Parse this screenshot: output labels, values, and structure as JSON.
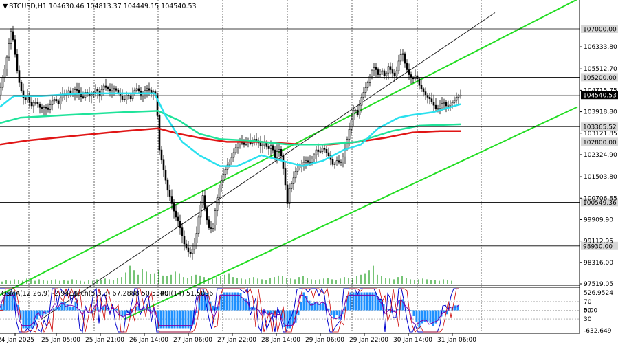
{
  "header": {
    "symbol": "BTCUSD,H1",
    "ohlc": "104630.46 104813.37 104449.15 104540.53"
  },
  "osc_header": {
    "osma": "OsMA(12,26,9) -2.9413",
    "stoch": "Stoch(5,3,3) 67.2888 50.5340",
    "rsi": "RSI(14) 51.5096"
  },
  "colors": {
    "candle": "#000000",
    "ma_fast": "#2ae0ee",
    "ma_mid": "#1fe39a",
    "ma_slow": "#e01515",
    "channel": "#22dd22",
    "tag_bg": "#d7d7d7",
    "price_tag_bg": "#000000",
    "osma": "#1e90ff",
    "stoch_main": "#0000cc",
    "stoch_signal": "#cc0000",
    "rsi": "#7a00aa"
  },
  "chart_data": {
    "type": "candlestick",
    "title": "BTCUSD,H1",
    "ylim": [
      97519.05,
      107920
    ],
    "y_ticks": [
      "106333.80",
      "105512.70",
      "104715.75",
      "103918.80",
      "103121.85",
      "102324.90",
      "101503.80",
      "100706.85",
      "99909.90",
      "99112.95",
      "98316.00",
      "97519.05"
    ],
    "x_ticks": [
      "24 Jan 2025",
      "25 Jan 05:00",
      "25 Jan 21:00",
      "26 Jan 14:00",
      "27 Jan 06:00",
      "27 Jan 22:00",
      "28 Jan 14:00",
      "29 Jan 06:00",
      "29 Jan 22:00",
      "30 Jan 14:00",
      "31 Jan 06:00"
    ],
    "levels": [
      {
        "value": 107000.0,
        "label": "107000.00"
      },
      {
        "value": 105200.0,
        "label": "105200.00"
      },
      {
        "value": 103365.52,
        "label": "103365.52"
      },
      {
        "value": 102800.0,
        "label": "102800.00"
      },
      {
        "value": 100549.36,
        "label": "100549.36"
      },
      {
        "value": 98930.0,
        "label": "98930.00"
      }
    ],
    "current_price": {
      "value": 104540.53,
      "label": "104540.53"
    },
    "close_path": [
      [
        0,
        104700
      ],
      [
        4,
        105200
      ],
      [
        8,
        105600
      ],
      [
        12,
        106300
      ],
      [
        16,
        106900
      ],
      [
        20,
        106500
      ],
      [
        24,
        105600
      ],
      [
        28,
        105000
      ],
      [
        32,
        104600
      ],
      [
        36,
        104300
      ],
      [
        40,
        104500
      ],
      [
        45,
        104100
      ],
      [
        50,
        104300
      ],
      [
        55,
        104200
      ],
      [
        60,
        104000
      ],
      [
        65,
        104100
      ],
      [
        70,
        104000
      ],
      [
        75,
        104300
      ],
      [
        80,
        104400
      ],
      [
        85,
        104200
      ],
      [
        90,
        104600
      ],
      [
        95,
        104500
      ],
      [
        100,
        104700
      ],
      [
        105,
        104500
      ],
      [
        110,
        104800
      ],
      [
        115,
        104600
      ],
      [
        120,
        104400
      ],
      [
        125,
        104700
      ],
      [
        130,
        104500
      ],
      [
        135,
        104600
      ],
      [
        140,
        104800
      ],
      [
        145,
        104500
      ],
      [
        150,
        104900
      ],
      [
        155,
        104800
      ],
      [
        160,
        104700
      ],
      [
        165,
        104800
      ],
      [
        170,
        104700
      ],
      [
        175,
        104500
      ],
      [
        180,
        104300
      ],
      [
        185,
        104600
      ],
      [
        190,
        104400
      ],
      [
        195,
        104700
      ],
      [
        200,
        104800
      ],
      [
        205,
        104500
      ],
      [
        210,
        104700
      ],
      [
        215,
        104800
      ],
      [
        220,
        104600
      ],
      [
        225,
        104700
      ],
      [
        228,
        104200
      ],
      [
        232,
        102500
      ],
      [
        236,
        102000
      ],
      [
        240,
        101500
      ],
      [
        244,
        101000
      ],
      [
        248,
        100700
      ],
      [
        252,
        100300
      ],
      [
        256,
        100000
      ],
      [
        260,
        99800
      ],
      [
        264,
        99400
      ],
      [
        268,
        99000
      ],
      [
        272,
        98800
      ],
      [
        276,
        98600
      ],
      [
        280,
        98800
      ],
      [
        285,
        99200
      ],
      [
        290,
        100200
      ],
      [
        295,
        100800
      ],
      [
        300,
        100000
      ],
      [
        305,
        99500
      ],
      [
        310,
        99700
      ],
      [
        315,
        100600
      ],
      [
        320,
        101200
      ],
      [
        325,
        101600
      ],
      [
        330,
        101900
      ],
      [
        335,
        102100
      ],
      [
        340,
        102400
      ],
      [
        345,
        102700
      ],
      [
        350,
        102800
      ],
      [
        355,
        102700
      ],
      [
        360,
        102900
      ],
      [
        365,
        102700
      ],
      [
        370,
        102900
      ],
      [
        375,
        102800
      ],
      [
        380,
        102600
      ],
      [
        385,
        102800
      ],
      [
        390,
        102500
      ],
      [
        395,
        102700
      ],
      [
        400,
        102200
      ],
      [
        405,
        102600
      ],
      [
        410,
        102200
      ],
      [
        415,
        101200
      ],
      [
        418,
        100500
      ],
      [
        420,
        101000
      ],
      [
        425,
        101300
      ],
      [
        430,
        101700
      ],
      [
        435,
        101900
      ],
      [
        440,
        102000
      ],
      [
        445,
        102100
      ],
      [
        450,
        102000
      ],
      [
        455,
        102200
      ],
      [
        460,
        102500
      ],
      [
        465,
        102400
      ],
      [
        470,
        102600
      ],
      [
        475,
        102400
      ],
      [
        480,
        102200
      ],
      [
        485,
        101900
      ],
      [
        490,
        102100
      ],
      [
        495,
        102000
      ],
      [
        500,
        102300
      ],
      [
        505,
        102900
      ],
      [
        510,
        103500
      ],
      [
        515,
        104100
      ],
      [
        520,
        103800
      ],
      [
        525,
        104400
      ],
      [
        530,
        104700
      ],
      [
        535,
        105000
      ],
      [
        540,
        105400
      ],
      [
        545,
        105600
      ],
      [
        550,
        105300
      ],
      [
        555,
        105500
      ],
      [
        560,
        105200
      ],
      [
        565,
        105600
      ],
      [
        570,
        105400
      ],
      [
        575,
        105200
      ],
      [
        580,
        105800
      ],
      [
        585,
        106200
      ],
      [
        590,
        105600
      ],
      [
        595,
        105300
      ],
      [
        600,
        105100
      ],
      [
        605,
        105300
      ],
      [
        610,
        104900
      ],
      [
        615,
        104700
      ],
      [
        620,
        104500
      ],
      [
        625,
        104400
      ],
      [
        630,
        104200
      ],
      [
        635,
        104000
      ],
      [
        640,
        104100
      ],
      [
        645,
        104300
      ],
      [
        650,
        104100
      ],
      [
        655,
        104200
      ],
      [
        660,
        104300
      ],
      [
        665,
        104500
      ],
      [
        670,
        104540
      ]
    ],
    "ma_fast": [
      [
        0,
        104100
      ],
      [
        20,
        104500
      ],
      [
        60,
        104500
      ],
      [
        120,
        104600
      ],
      [
        180,
        104600
      ],
      [
        225,
        104600
      ],
      [
        240,
        103800
      ],
      [
        265,
        102800
      ],
      [
        290,
        102300
      ],
      [
        320,
        101900
      ],
      [
        345,
        101900
      ],
      [
        380,
        102300
      ],
      [
        410,
        102100
      ],
      [
        440,
        101900
      ],
      [
        470,
        102100
      ],
      [
        500,
        102500
      ],
      [
        525,
        102700
      ],
      [
        550,
        103300
      ],
      [
        580,
        103700
      ],
      [
        600,
        103800
      ],
      [
        630,
        103900
      ],
      [
        670,
        104200
      ]
    ],
    "ma_mid": [
      [
        0,
        103500
      ],
      [
        30,
        103700
      ],
      [
        100,
        103800
      ],
      [
        180,
        103900
      ],
      [
        230,
        103950
      ],
      [
        260,
        103600
      ],
      [
        290,
        103100
      ],
      [
        320,
        102900
      ],
      [
        360,
        102850
      ],
      [
        420,
        102700
      ],
      [
        470,
        102700
      ],
      [
        520,
        102800
      ],
      [
        570,
        103200
      ],
      [
        610,
        103400
      ],
      [
        670,
        103450
      ]
    ],
    "ma_slow": [
      [
        0,
        102700
      ],
      [
        40,
        102850
      ],
      [
        100,
        103000
      ],
      [
        180,
        103200
      ],
      [
        230,
        103300
      ],
      [
        260,
        103100
      ],
      [
        290,
        102950
      ],
      [
        330,
        102800
      ],
      [
        380,
        102800
      ],
      [
        440,
        102700
      ],
      [
        480,
        102700
      ],
      [
        520,
        102800
      ],
      [
        560,
        102950
      ],
      [
        600,
        103150
      ],
      [
        640,
        103200
      ],
      [
        670,
        103200
      ]
    ],
    "channel": {
      "upper": [
        [
          -100,
          95800
        ],
        [
          840,
          108100
        ]
      ],
      "middle": [
        [
          60,
          96200
        ],
        [
          720,
          107600
        ]
      ],
      "lower": [
        [
          180,
          96200
        ],
        [
          840,
          104100
        ]
      ]
    },
    "volumes": [
      3,
      5,
      4,
      6,
      5,
      4,
      7,
      5,
      4,
      6,
      5,
      4,
      5,
      6,
      4,
      5,
      4,
      6,
      5,
      4,
      3,
      5,
      4,
      6,
      5,
      7,
      6,
      5,
      8,
      9,
      15,
      24,
      18,
      12,
      20,
      16,
      13,
      14,
      18,
      11,
      10,
      12,
      16,
      14,
      9,
      8,
      10,
      12,
      11,
      9,
      8,
      7,
      9,
      10,
      12,
      14,
      9,
      8,
      7,
      6,
      8,
      9,
      7,
      6,
      5,
      8,
      9,
      11,
      10,
      8,
      7,
      6,
      9,
      10,
      8,
      6,
      5,
      6,
      7,
      8,
      6,
      5,
      7,
      9,
      8,
      7,
      10,
      12,
      14,
      18,
      24,
      12,
      10,
      8,
      7,
      6,
      9,
      10,
      8,
      6,
      5,
      6,
      7,
      6,
      5,
      5,
      4,
      6,
      5,
      4
    ],
    "oscillator": {
      "osma_labels": [
        "OsMA(12,26,9) -2.9413"
      ],
      "stoch_labels": [
        "Stoch(5,3,3) 67.2888 50.5340"
      ],
      "rsi_labels": [
        "RSI(14) 51.5096"
      ],
      "osma_ticks": [
        "526.9524",
        "0.00",
        "-632.649"
      ],
      "levels": [
        "70",
        "50",
        "30"
      ]
    }
  }
}
